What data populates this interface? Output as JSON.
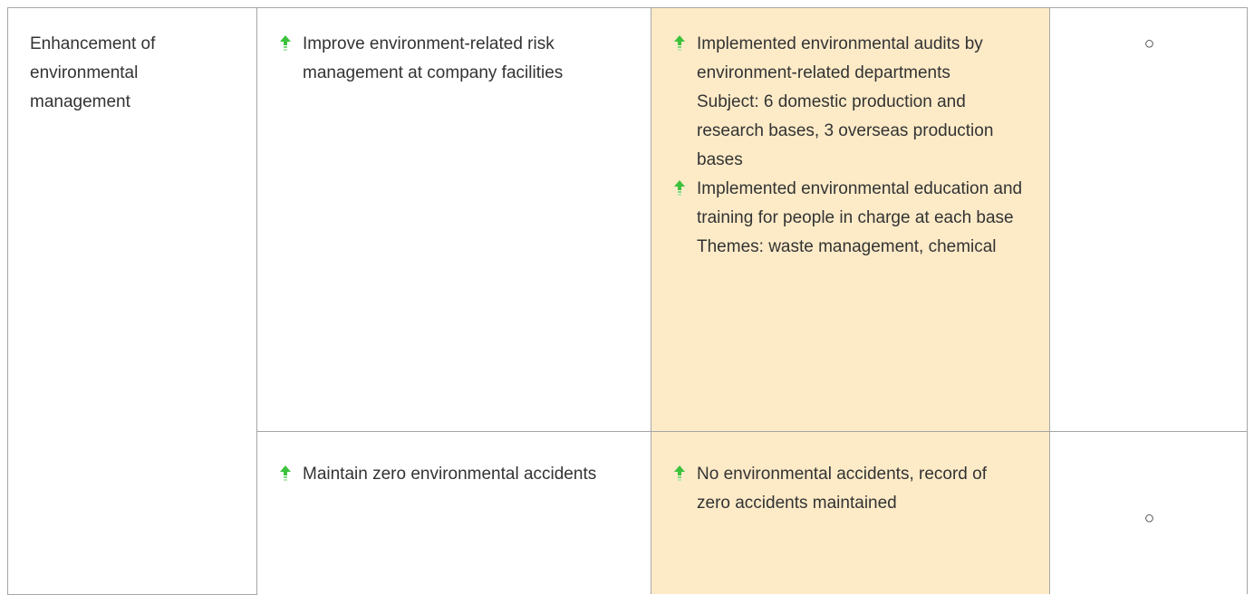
{
  "table": {
    "rows": [
      {
        "cells": [
          {
            "lines": [
              "Enhancement of environmental management"
            ]
          },
          {
            "bullets": [
              [
                "Improve environment-related risk management at company facilities"
              ]
            ]
          },
          {
            "bullets": [
              [
                "Implemented environmental audits by environment-related departments",
                "Subject: 6 domestic production and research bases, 3 overseas production bases"
              ],
              [
                "Implemented environmental education and training for people in charge at each base",
                "Themes: waste management, chemical"
              ]
            ]
          },
          {
            "lines": [
              "○"
            ]
          }
        ]
      },
      {
        "cells": [
          {
            "bullets": [
              [
                "Maintain zero environmental accidents"
              ]
            ]
          },
          {
            "bullets": [
              [
                "No environmental accidents, record of",
                "zero accidents maintained"
              ]
            ]
          },
          {
            "lines": [
              "○"
            ]
          }
        ]
      }
    ]
  }
}
